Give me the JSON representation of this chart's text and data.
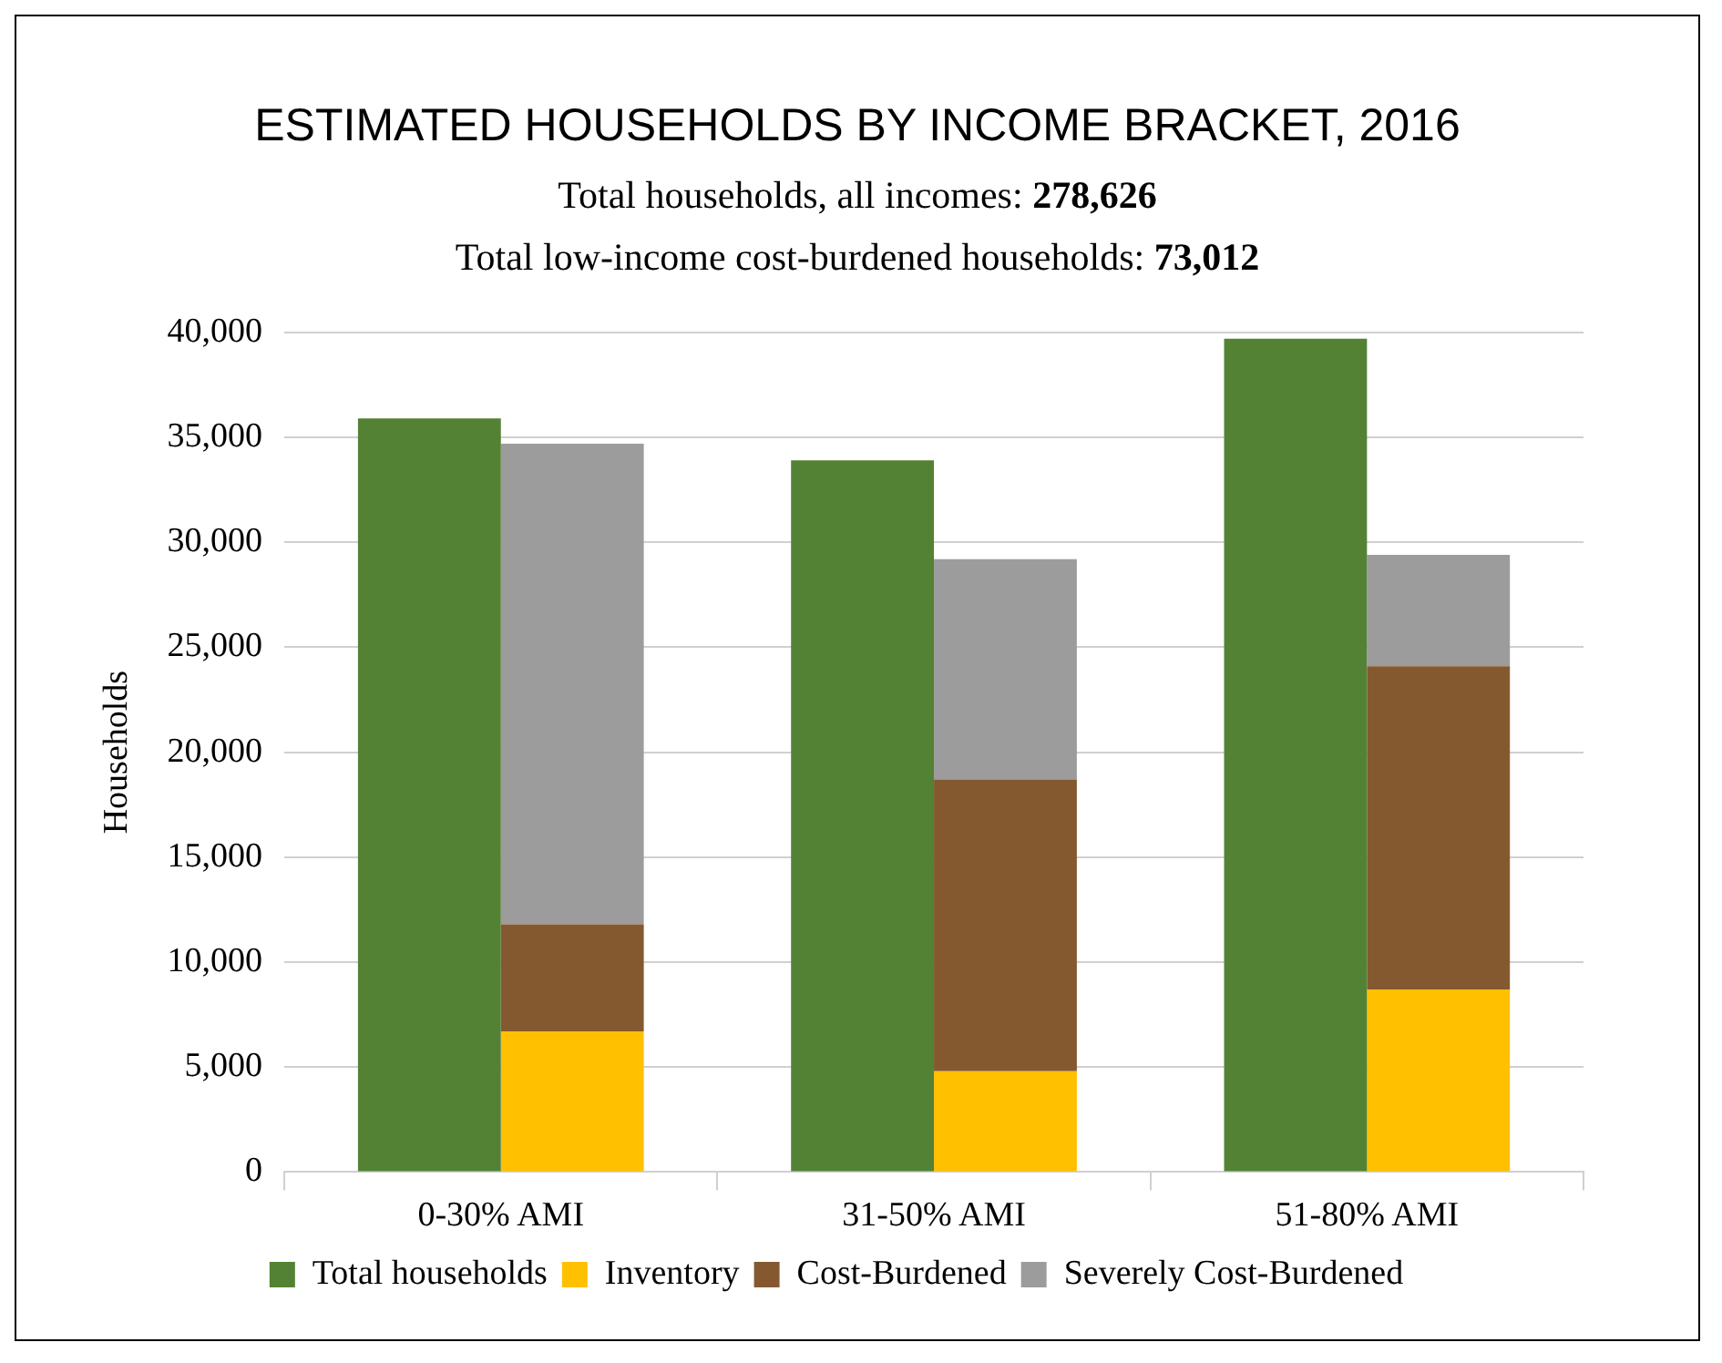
{
  "chart_data": {
    "type": "bar",
    "title": "ESTIMATED HOUSEHOLDS BY INCOME BRACKET, 2016",
    "subtitle": "Total households, all incomes: 278,626\nTotal low-income cost-burdened households: 73,012",
    "ylabel": "Households",
    "categories": [
      "0-30% AMI",
      "31-50% AMI",
      "51-80% AMI"
    ],
    "series": [
      {
        "name": "Total households",
        "color": "#548235",
        "values": [
          35900,
          33900,
          39700
        ]
      },
      {
        "name": "Inventory",
        "color": "#ffc000",
        "values": [
          6700,
          4800,
          8700
        ],
        "base": [
          0,
          0,
          0
        ]
      },
      {
        "name": "Cost-Burdened",
        "color": "#855930",
        "values": [
          5100,
          13900,
          15400
        ],
        "base": [
          6700,
          4800,
          8700
        ]
      },
      {
        "name": "Severely Cost-Burdened",
        "color": "#9c9c9c",
        "values": [
          22900,
          10500,
          5300
        ],
        "base": [
          11800,
          18700,
          24100
        ]
      }
    ],
    "ylim": [
      0,
      40000
    ],
    "yticks": [
      0,
      {
        "value": 5000,
        "label": "5,000"
      },
      {
        "value": 10000,
        "label": "10,000"
      },
      {
        "value": 15000,
        "label": "15,000"
      },
      {
        "value": 20000,
        "label": "20,000"
      },
      {
        "value": 25000,
        "label": "25,000"
      },
      {
        "value": 30000,
        "label": "30,000"
      },
      {
        "value": 35000,
        "label": "35,000"
      },
      {
        "value": 40000,
        "label": "40,000"
      }
    ],
    "grid": "y",
    "legend": "bottom"
  }
}
